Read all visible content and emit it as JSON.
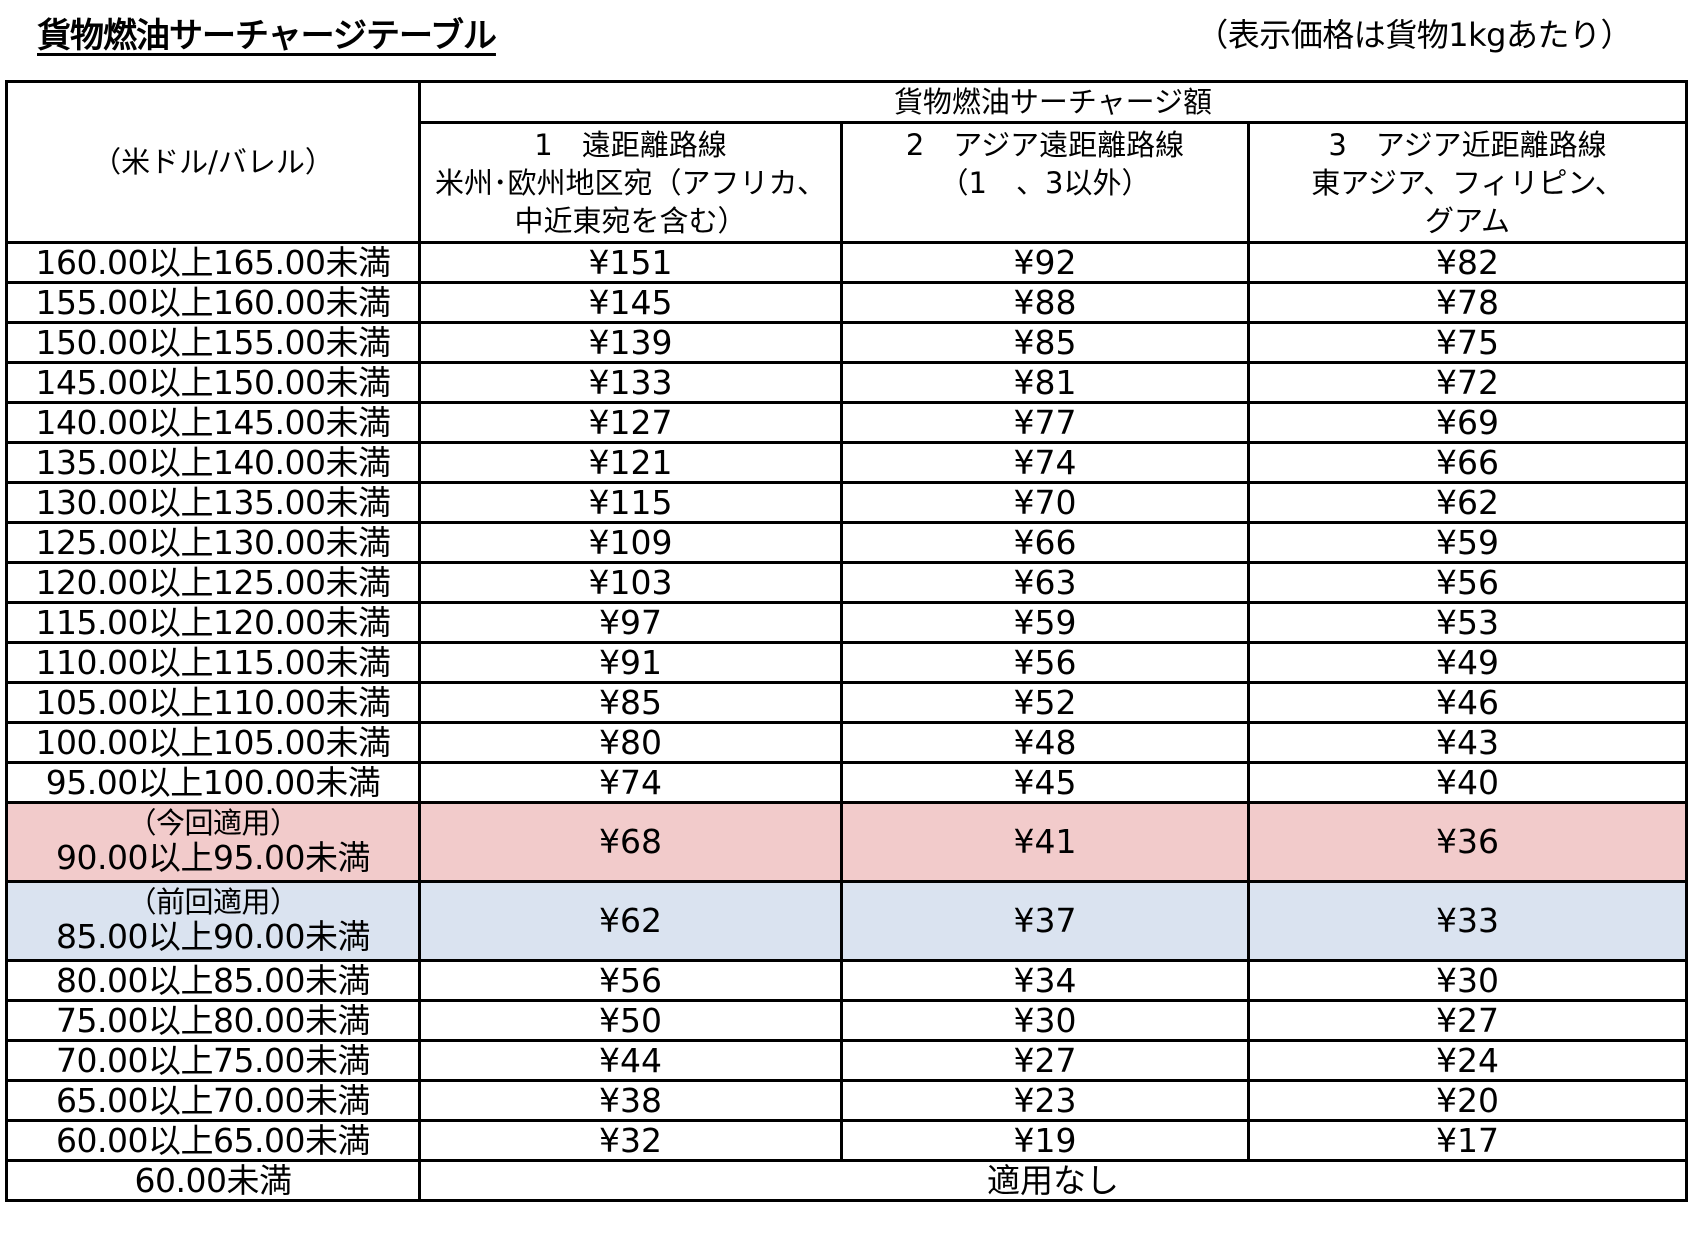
{
  "title": "貨物燃油サーチャージテーブル",
  "unit_note": "（表示価格は貨物1kgあたり）",
  "colors": {
    "current_row": "#f2cbcb",
    "previous_row": "#dae3f0",
    "border": "#000000"
  },
  "header": {
    "group_label": "貨物燃油サーチャージ額",
    "first_column": "（米ドル/バレル）",
    "columns": [
      {
        "lines": [
          "1　遠距離路線",
          "米州･欧州地区宛（アフリカ、",
          "中近東宛を含む）"
        ]
      },
      {
        "lines": [
          "2　アジア遠距離路線",
          "（1　、3以外）"
        ]
      },
      {
        "lines": [
          "3　アジア近距離路線",
          "東アジア、フィリピン、",
          "グアム"
        ]
      }
    ]
  },
  "rows": [
    {
      "range": "160.00以上165.00未満",
      "values": [
        "¥151",
        "¥92",
        "¥82"
      ]
    },
    {
      "range": "155.00以上160.00未満",
      "values": [
        "¥145",
        "¥88",
        "¥78"
      ]
    },
    {
      "range": "150.00以上155.00未満",
      "values": [
        "¥139",
        "¥85",
        "¥75"
      ]
    },
    {
      "range": "145.00以上150.00未満",
      "values": [
        "¥133",
        "¥81",
        "¥72"
      ]
    },
    {
      "range": "140.00以上145.00未満",
      "values": [
        "¥127",
        "¥77",
        "¥69"
      ]
    },
    {
      "range": "135.00以上140.00未満",
      "values": [
        "¥121",
        "¥74",
        "¥66"
      ]
    },
    {
      "range": "130.00以上135.00未満",
      "values": [
        "¥115",
        "¥70",
        "¥62"
      ]
    },
    {
      "range": "125.00以上130.00未満",
      "values": [
        "¥109",
        "¥66",
        "¥59"
      ]
    },
    {
      "range": "120.00以上125.00未満",
      "values": [
        "¥103",
        "¥63",
        "¥56"
      ]
    },
    {
      "range": "115.00以上120.00未満",
      "values": [
        "¥97",
        "¥59",
        "¥53"
      ]
    },
    {
      "range": "110.00以上115.00未満",
      "values": [
        "¥91",
        "¥56",
        "¥49"
      ]
    },
    {
      "range": "105.00以上110.00未満",
      "values": [
        "¥85",
        "¥52",
        "¥46"
      ]
    },
    {
      "range": "100.00以上105.00未満",
      "values": [
        "¥80",
        "¥48",
        "¥43"
      ]
    },
    {
      "range": "95.00以上100.00未満",
      "values": [
        "¥74",
        "¥45",
        "¥40"
      ]
    },
    {
      "note": "（今回適用）",
      "range": "90.00以上95.00未満",
      "values": [
        "¥68",
        "¥41",
        "¥36"
      ],
      "status": "current"
    },
    {
      "note": "（前回適用）",
      "range": "85.00以上90.00未満",
      "values": [
        "¥62",
        "¥37",
        "¥33"
      ],
      "status": "previous"
    },
    {
      "range": "80.00以上85.00未満",
      "values": [
        "¥56",
        "¥34",
        "¥30"
      ]
    },
    {
      "range": "75.00以上80.00未満",
      "values": [
        "¥50",
        "¥30",
        "¥27"
      ]
    },
    {
      "range": "70.00以上75.00未満",
      "values": [
        "¥44",
        "¥27",
        "¥24"
      ]
    },
    {
      "range": "65.00以上70.00未満",
      "values": [
        "¥38",
        "¥23",
        "¥20"
      ]
    },
    {
      "range": "60.00以上65.00未満",
      "values": [
        "¥32",
        "¥19",
        "¥17"
      ]
    }
  ],
  "footer": {
    "range": "60.00未満",
    "text": "適用なし"
  }
}
